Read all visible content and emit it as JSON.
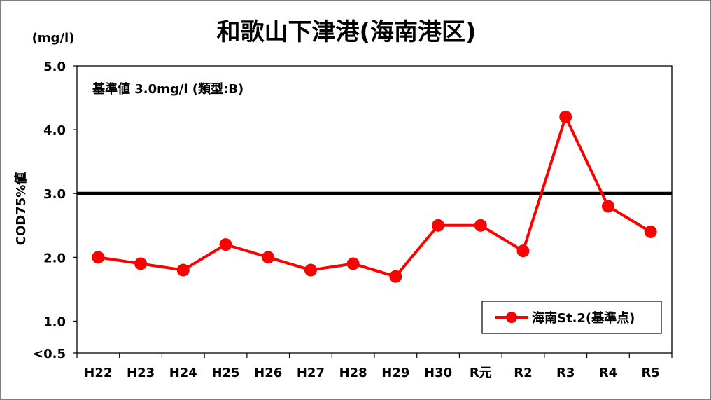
{
  "chart_data": {
    "type": "line",
    "title": "和歌山下津港(海南港区)",
    "unit_label": "(mg/l)",
    "ylabel": "COD75%値",
    "note": "基準値 3.0mg/l (類型:B)",
    "categories": [
      "H22",
      "H23",
      "H24",
      "H25",
      "H26",
      "H27",
      "H28",
      "H29",
      "H30",
      "R元",
      "R2",
      "R3",
      "R4",
      "R5"
    ],
    "series": [
      {
        "name": "海南St.2(基準点)",
        "color": "#ff0000",
        "values": [
          2.0,
          1.9,
          1.8,
          2.2,
          2.0,
          1.8,
          1.9,
          1.7,
          2.5,
          2.5,
          2.1,
          4.2,
          2.8,
          2.4
        ]
      }
    ],
    "standard_value": 3.0,
    "ylim": [
      0.5,
      5.0
    ],
    "yticks": [
      0.5,
      1.0,
      2.0,
      3.0,
      4.0,
      5.0
    ],
    "ytick_labels": [
      "<0.5",
      "1.0",
      "2.0",
      "3.0",
      "4.0",
      "5.0"
    ],
    "legend_position": "bottom-right",
    "grid": false
  }
}
